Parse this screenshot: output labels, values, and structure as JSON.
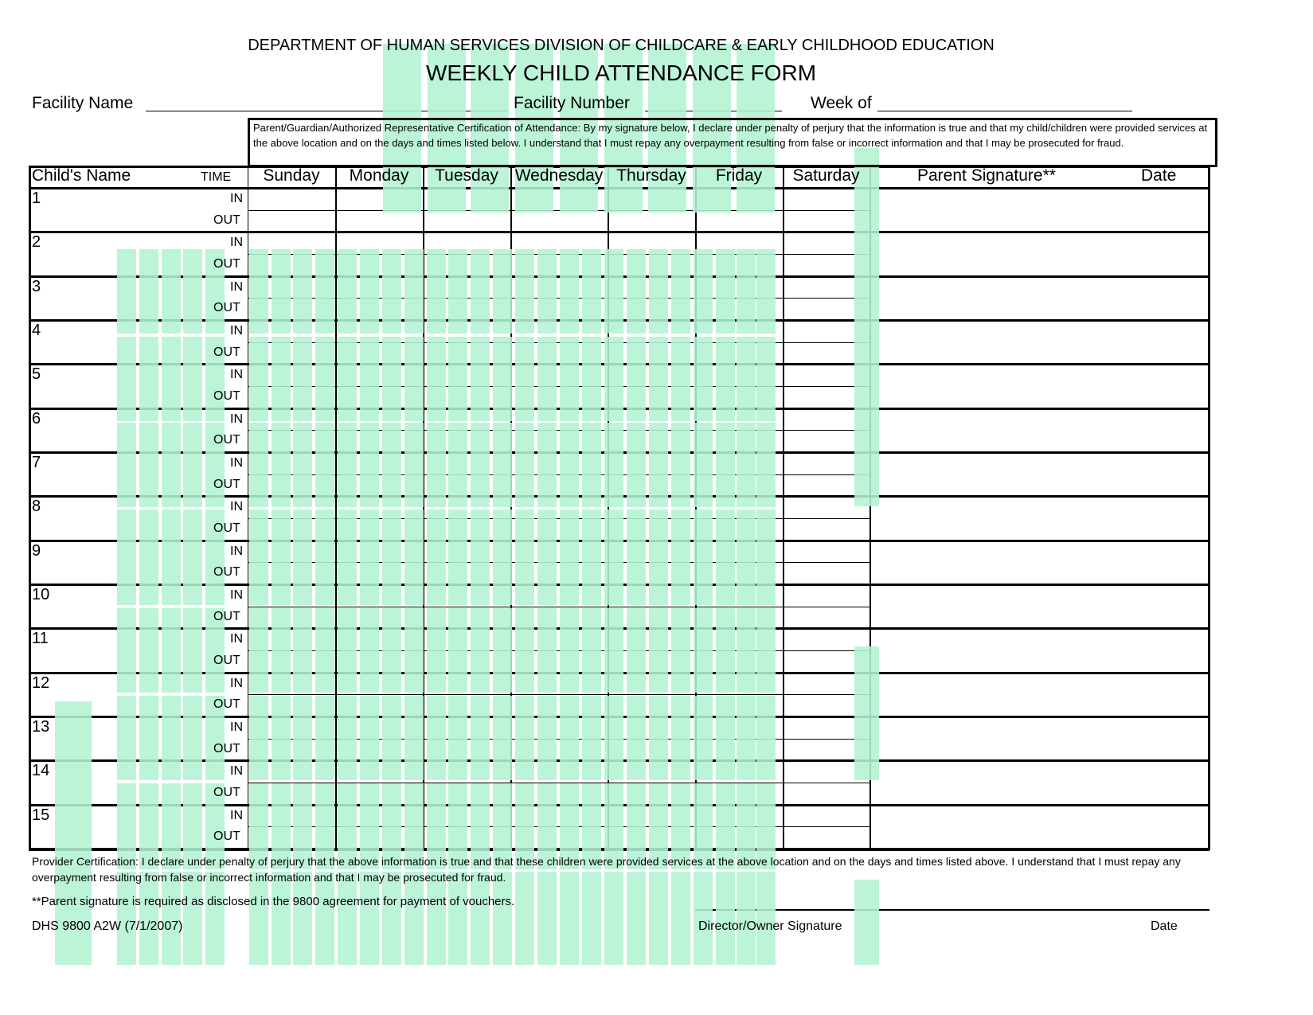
{
  "header": {
    "department": "DEPARTMENT OF HUMAN SERVICES DIVISION OF CHILDCARE & EARLY CHILDHOOD EDUCATION",
    "title": "WEEKLY CHILD ATTENDANCE FORM",
    "facility_name_label": "Facility Name",
    "facility_number_label": "Facility Number",
    "week_of_label": "Week of",
    "facility_name_value": "",
    "facility_number_value": "",
    "week_of_value": ""
  },
  "parent_certification": "Parent/Guardian/Authorized Representative Certification of Attendance:  By my signature below, I declare under penalty of perjury that the information is true and that my child/children were provided services at the above location and on the days and times listed below.  I understand that I must repay any overpayment resulting from false or incorrect information and that I may be prosecuted for fraud.",
  "table": {
    "child_name_header": "Child's Name",
    "time_header": "TIME",
    "days": [
      "Sunday",
      "Monday",
      "Tuesday",
      "Wednesday",
      "Thursday",
      "Friday",
      "Saturday"
    ],
    "signature_header": "Parent Signature**",
    "date_header": "Date",
    "in_label": "IN",
    "out_label": "OUT",
    "rows": [
      "1",
      "2",
      "3",
      "4",
      "5",
      "6",
      "7",
      "8",
      "9",
      "10",
      "11",
      "12",
      "13",
      "14",
      "15"
    ]
  },
  "footer": {
    "provider_certification": "Provider Certification:  I declare under penalty of perjury that the above information is true and that these children were provided services at the above location and on the days and times listed above.  I understand that I must repay any overpayment resulting from false or incorrect information and that I may be prosecuted for fraud.",
    "parent_signature_note": "**Parent signature is required as disclosed in the 9800 agreement for payment of vouchers.",
    "form_id": "DHS 9800 A2W (7/1/2007)",
    "director_signature_label": "Director/Owner Signature",
    "date_label": "Date"
  },
  "overlay_color": "#b3f3d3"
}
